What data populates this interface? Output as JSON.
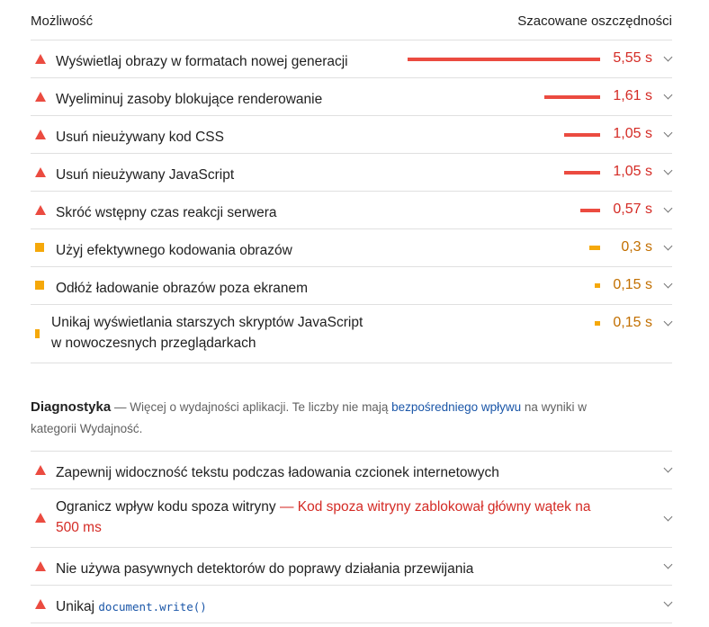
{
  "header": {
    "left": "Możliwość",
    "right": "Szacowane oszczędności"
  },
  "opportunities": [
    {
      "title": "Wyświetlaj obrazy w formatach nowej generacji",
      "value": "5,55 s",
      "severity": "fail",
      "savings_s": 5.55
    },
    {
      "title": "Wyeliminuj zasoby blokujące renderowanie",
      "value": "1,61 s",
      "severity": "fail",
      "savings_s": 1.61
    },
    {
      "title": "Usuń nieużywany kod CSS",
      "value": "1,05 s",
      "severity": "fail",
      "savings_s": 1.05
    },
    {
      "title": "Usuń nieużywany JavaScript",
      "value": "1,05 s",
      "severity": "fail",
      "savings_s": 1.05
    },
    {
      "title": "Skróć wstępny czas reakcji serwera",
      "value": "0,57 s",
      "severity": "fail",
      "savings_s": 0.57
    },
    {
      "title": "Użyj efektywnego kodowania obrazów",
      "value": "0,3 s",
      "severity": "average",
      "savings_s": 0.3
    },
    {
      "title": "Odłóż ładowanie obrazów poza ekranem",
      "value": "0,15 s",
      "severity": "average",
      "savings_s": 0.15
    },
    {
      "title_line1": "Unikaj wyświetlania starszych skryptów JavaScript",
      "title_line2": "w nowoczesnych przeglądarkach",
      "value": "0,15 s",
      "severity": "average",
      "savings_s": 0.15
    }
  ],
  "diagnostics_intro": {
    "title": "Diagnostyka",
    "text_before": " — Więcej o wydajności aplikacji. Te liczby nie mają ",
    "link": "bezpośredniego wpływu",
    "text_after": " na wyniki w kategorii Wydajność."
  },
  "diagnostics": [
    {
      "title": "Zapewnij widoczność tekstu podczas ładowania czcionek internetowych"
    },
    {
      "title": "Ogranicz wpływ kodu spoza witryny",
      "warning_line1": " — Kod spoza witryny zablokował główny wątek na",
      "warning_line2": "500 ms"
    },
    {
      "title": "Nie używa pasywnych detektorów do poprawy działania przewijania"
    },
    {
      "title": "Unikaj",
      "code": "document.write()"
    }
  ],
  "colors": {
    "fail": "#eb4b40",
    "average": "#f5a80a"
  }
}
